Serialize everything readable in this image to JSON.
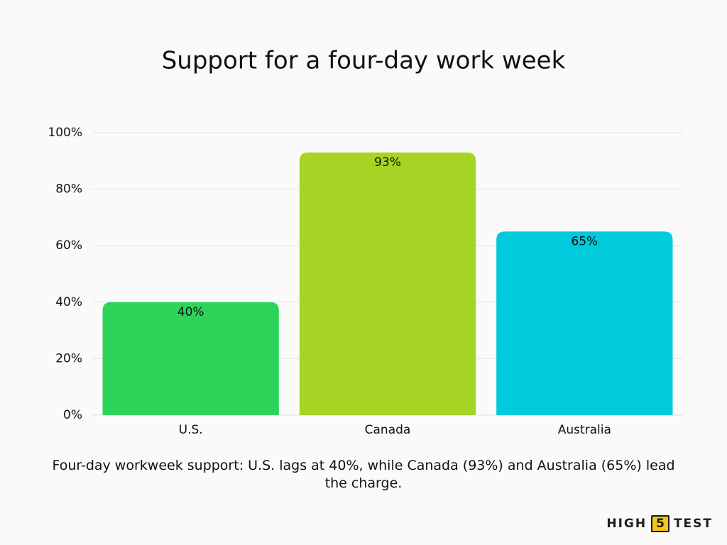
{
  "chart_data": {
    "type": "bar",
    "title": "Support for a four-day work week",
    "categories": [
      "U.S.",
      "Canada",
      "Australia"
    ],
    "values": [
      40,
      93,
      65
    ],
    "value_labels": [
      "40%",
      "93%",
      "65%"
    ],
    "colors": [
      "#2ed35a",
      "#a6d424",
      "#00cadb"
    ],
    "ylim": [
      0,
      100
    ],
    "yticks": [
      {
        "value": 0,
        "label": "0%"
      },
      {
        "value": 20,
        "label": "20%"
      },
      {
        "value": 40,
        "label": "40%"
      },
      {
        "value": 60,
        "label": "60%"
      },
      {
        "value": 80,
        "label": "80%"
      },
      {
        "value": 100,
        "label": "100%"
      }
    ],
    "grid": true,
    "caption": "Four-day workweek support: U.S. lags at 40%, while Canada (93%) and Australia (65%) lead the charge.",
    "brand": [
      "HIGH",
      "5",
      "TEST"
    ]
  }
}
